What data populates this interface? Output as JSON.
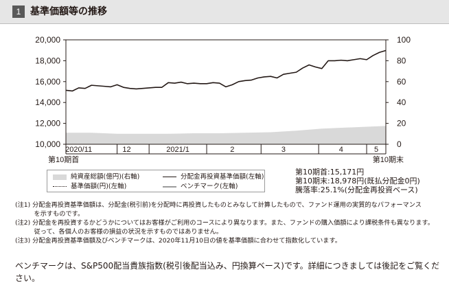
{
  "header": {
    "number": "1",
    "title": "基準価額等の推移"
  },
  "chart_data": {
    "type": "line",
    "ylim_left": [
      10000,
      20000
    ],
    "ylim_right": [
      0,
      100
    ],
    "yticks_left": [
      "20,000",
      "18,000",
      "16,000",
      "14,000",
      "12,000",
      "10,000"
    ],
    "yticks_right": [
      "100",
      "80",
      "60",
      "40",
      "20",
      "0"
    ],
    "xticks": [
      {
        "label": "2020/11",
        "x": 0.04
      },
      {
        "label": "12",
        "x": 0.19
      },
      {
        "label": "2021/1",
        "x": 0.35
      },
      {
        "label": "2",
        "x": 0.52
      },
      {
        "label": "3",
        "x": 0.68
      },
      {
        "label": "4",
        "x": 0.86
      },
      {
        "label": "5",
        "x": 0.97
      }
    ],
    "x_start_label": "第10期首",
    "x_end_label": "第10期末",
    "series": [
      {
        "name": "分配金再投資基準価額(左軸)",
        "axis": "left",
        "style": "solid-black",
        "x": [
          0,
          0.02,
          0.04,
          0.06,
          0.08,
          0.1,
          0.12,
          0.14,
          0.16,
          0.18,
          0.2,
          0.22,
          0.24,
          0.26,
          0.28,
          0.3,
          0.32,
          0.34,
          0.36,
          0.38,
          0.4,
          0.42,
          0.44,
          0.46,
          0.48,
          0.5,
          0.52,
          0.54,
          0.56,
          0.58,
          0.6,
          0.62,
          0.64,
          0.66,
          0.68,
          0.7,
          0.72,
          0.74,
          0.76,
          0.78,
          0.8,
          0.82,
          0.84,
          0.86,
          0.88,
          0.9,
          0.92,
          0.94,
          0.96,
          0.98,
          1.0
        ],
        "values": [
          15171,
          15100,
          15400,
          15350,
          15650,
          15600,
          15550,
          15500,
          15700,
          15450,
          15350,
          15300,
          15350,
          15400,
          15450,
          15450,
          15900,
          15850,
          15950,
          15800,
          15850,
          15800,
          15800,
          15900,
          15850,
          15500,
          15700,
          16000,
          16100,
          16150,
          16350,
          16450,
          16500,
          16350,
          16700,
          16800,
          16900,
          17300,
          17600,
          17400,
          17250,
          18000,
          18000,
          18050,
          18000,
          18100,
          18200,
          18100,
          18500,
          18800,
          18978
        ]
      },
      {
        "name": "基準価額(円)(左軸)",
        "axis": "left",
        "style": "dotted-black"
      },
      {
        "name": "ベンチマーク(左軸)",
        "axis": "left",
        "style": "solid-gray"
      },
      {
        "name": "純資産総額(億円)(右軸)",
        "axis": "right",
        "style": "area-lightgray",
        "x": [
          0,
          0.08,
          0.16,
          0.24,
          0.32,
          0.4,
          0.48,
          0.56,
          0.64,
          0.72,
          0.8,
          0.88,
          0.96,
          1.0
        ],
        "values": [
          11,
          11,
          10,
          10,
          10,
          10.5,
          10.5,
          11,
          11.5,
          13,
          15,
          16,
          17,
          17.5
        ]
      }
    ]
  },
  "legend": {
    "net_assets": "純資産総額(億円)(右軸)",
    "reinvested_nav": "分配金再投資基準価額(左軸)",
    "nav": "基準価額(円)(左軸)",
    "benchmark": "ベンチマーク(左軸)"
  },
  "summary": {
    "start": "第10期首:15,171円",
    "end": "第10期末:18,978円(既払分配金0円)",
    "change": "騰落率:25.1%(分配金再投資ベース)"
  },
  "notes": [
    "(注1) 分配金再投資基準価額は、分配金(税引前)を分配時に再投資したものとみなして計算したもので、ファンド運用の実質的なパフォーマンス",
    "　　　を示すものです。",
    "(注2) 分配金を再投資するかどうかについてはお客様がご利用のコースにより異なります。また、ファンドの購入価額により課税条件も異なります。",
    "　　　従って、各個人のお客様の損益の状況を示すものではありません。",
    "(注3) 分配金再投資基準価額及びベンチマークは、2020年11月10日の値を基準価額に合わせて指数化しています。"
  ],
  "footer_text": "ベンチマークは、S&P500配当貴族指数(税引後配当込み、円換算ベース)です。詳細につきましては後記をご覧ください。",
  "colors": {
    "header_bg": "#e6e6e6",
    "line": "#231815",
    "area": "#d9d9d9",
    "benchmark": "#9b9b9b"
  }
}
